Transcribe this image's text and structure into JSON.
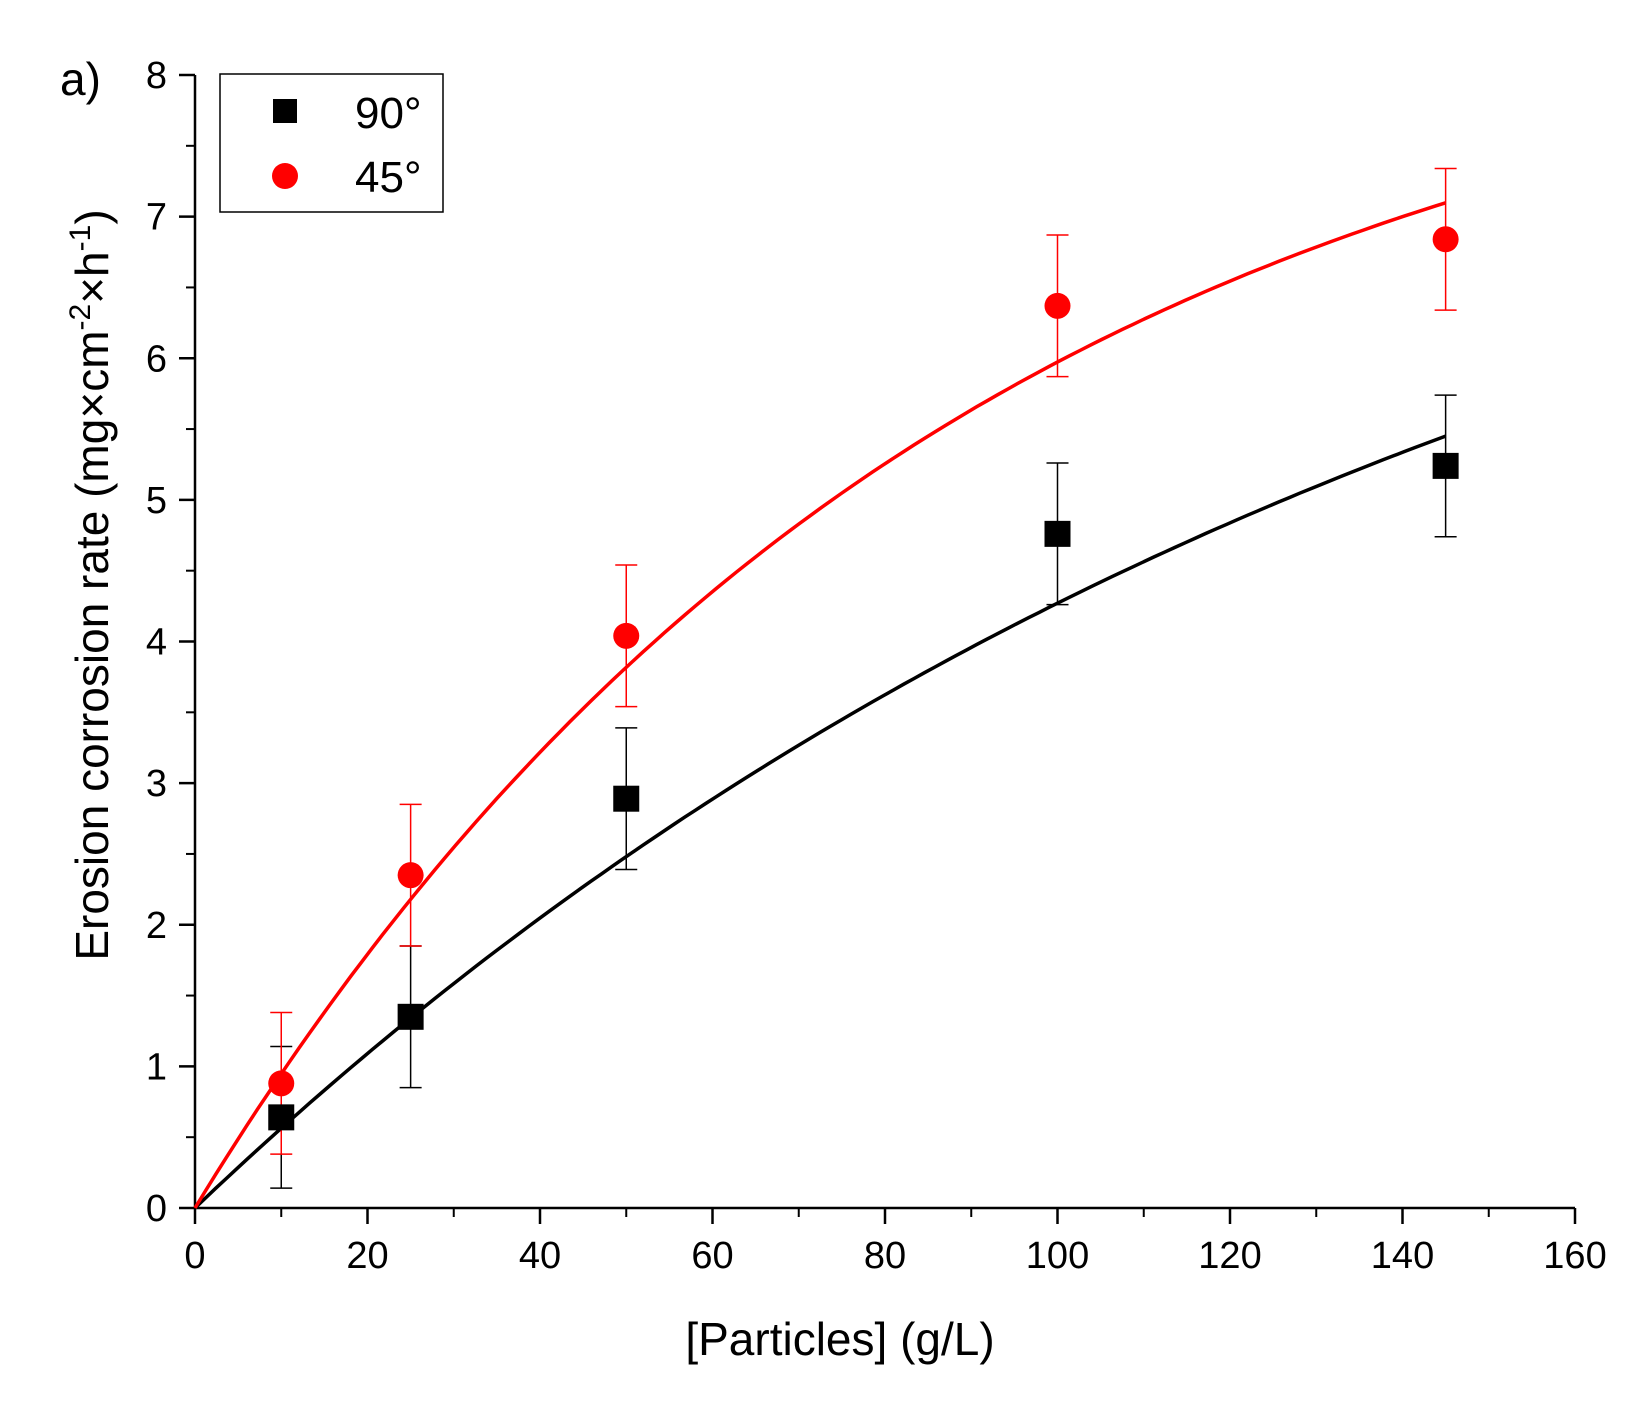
{
  "chart_data": {
    "type": "scatter",
    "panel_label": "a)",
    "xlabel": "[Particles] (g/L)",
    "ylabel": "Erosion corrosion rate (mg×cm⁻²×h⁻¹)",
    "ylabel_parts": {
      "base": "Erosion corrosion rate (mg×cm",
      "sup1": "-2",
      "mid": "×h",
      "sup2": "-1",
      "end": ")"
    },
    "xlim": [
      0,
      160
    ],
    "ylim": [
      0,
      8
    ],
    "x_ticks": [
      0,
      20,
      40,
      60,
      80,
      100,
      120,
      140,
      160
    ],
    "y_ticks": [
      0,
      1,
      2,
      3,
      4,
      5,
      6,
      7,
      8
    ],
    "legend_position": "top-left",
    "series": [
      {
        "name": "90°",
        "marker": "square",
        "color": "#000000",
        "x": [
          10,
          25,
          50,
          100,
          145
        ],
        "y": [
          0.64,
          1.35,
          2.89,
          4.76,
          5.24
        ],
        "error": [
          0.5,
          0.5,
          0.5,
          0.5,
          0.5
        ],
        "fit": {
          "model": "a*(1-exp(-x/b))",
          "a": 8.9,
          "b": 153,
          "x_range": [
            0,
            145
          ]
        }
      },
      {
        "name": "45°",
        "marker": "circle",
        "color": "#ff0000",
        "x": [
          10,
          25,
          50,
          100,
          145
        ],
        "y": [
          0.88,
          2.35,
          4.04,
          6.37,
          6.84
        ],
        "error": [
          0.5,
          0.5,
          0.5,
          0.5,
          0.5
        ],
        "fit": {
          "model": "a*(1-exp(-x/b))",
          "a": 8.77,
          "b": 87.5,
          "x_range": [
            0,
            145
          ]
        }
      }
    ]
  }
}
